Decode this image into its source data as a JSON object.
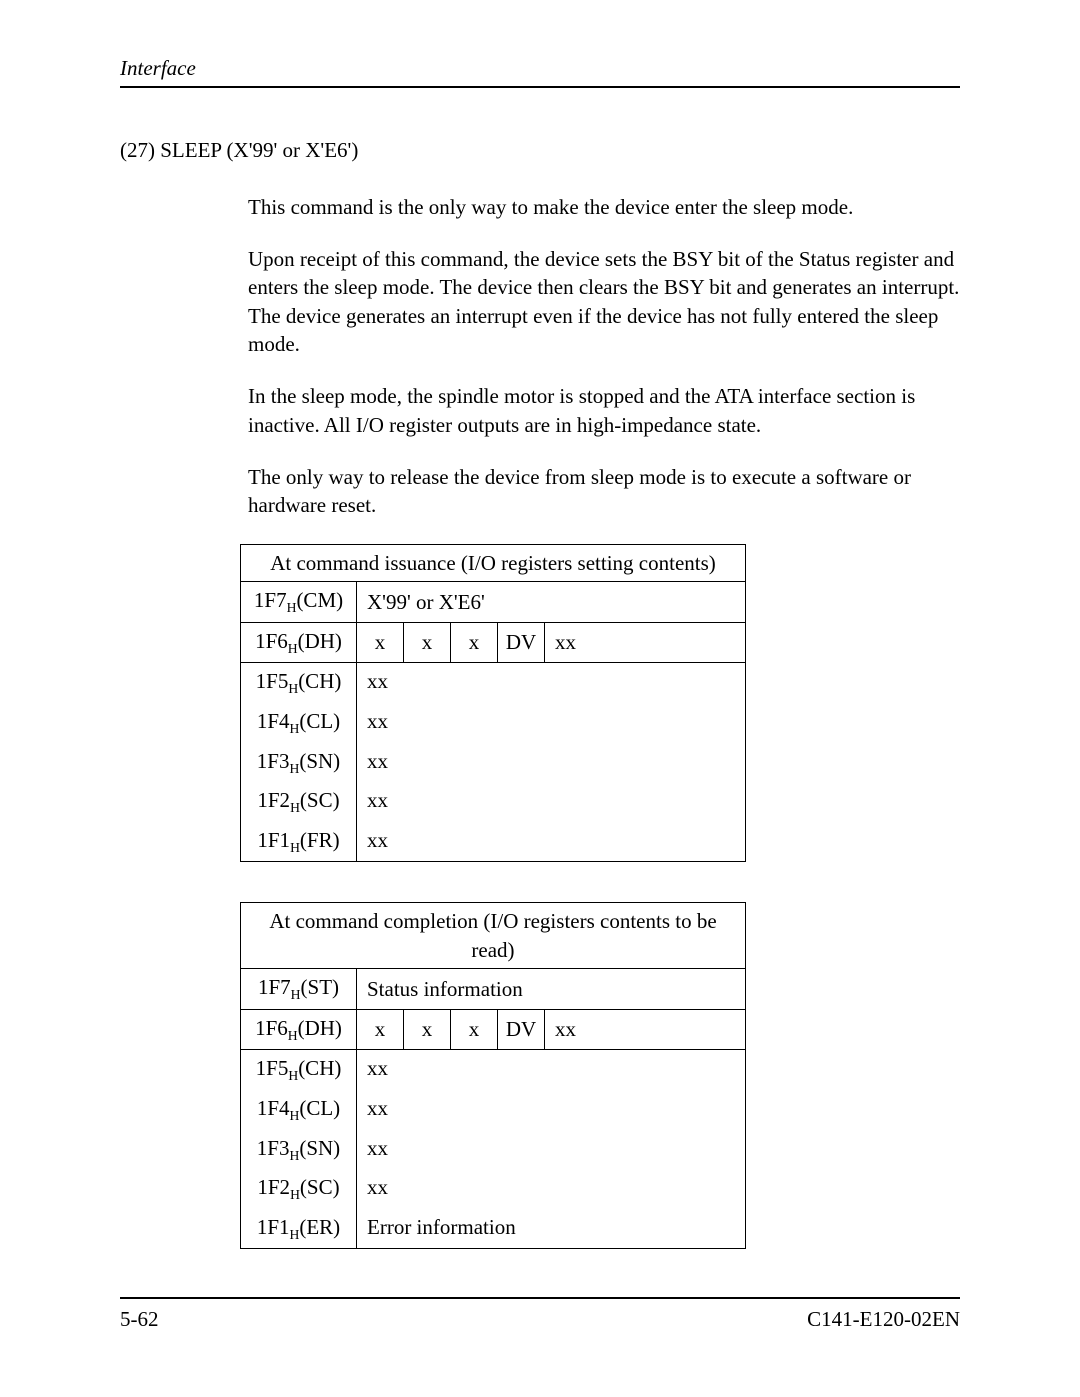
{
  "header": {
    "chapter_label": "Interface"
  },
  "section": {
    "heading": "(27)  SLEEP (X'99' or X'E6')",
    "paragraphs": [
      "This command is the only way to make the device enter the sleep mode.",
      "Upon receipt of this command, the device sets the BSY bit of the Status register and enters the sleep mode.  The device then clears the BSY bit and generates an interrupt. The device generates an interrupt even if the device has not fully entered the sleep mode.",
      "In the sleep mode, the spindle motor is stopped and the ATA interface section is inactive.  All I/O register outputs are in high-impedance state.",
      "The only way to release the device from sleep mode is to execute a software or hardware reset."
    ]
  },
  "table_issuance": {
    "caption": "At command issuance (I/O registers setting contents)",
    "row_cm": {
      "label": "1F7",
      "sub": "H",
      "paren": "(CM)",
      "value": "X'99' or X'E6'"
    },
    "row_dh": {
      "label": "1F6",
      "sub": "H",
      "paren": "(DH)",
      "b0": "x",
      "b1": "x",
      "b2": "x",
      "b3": "DV",
      "rest": "xx"
    },
    "stack": [
      {
        "label": "1F5",
        "sub": "H",
        "paren": "(CH)",
        "value": "xx"
      },
      {
        "label": "1F4",
        "sub": "H",
        "paren": "(CL)",
        "value": "xx"
      },
      {
        "label": "1F3",
        "sub": "H",
        "paren": "(SN)",
        "value": "xx"
      },
      {
        "label": "1F2",
        "sub": "H",
        "paren": "(SC)",
        "value": "xx"
      },
      {
        "label": "1F1",
        "sub": "H",
        "paren": "(FR)",
        "value": "xx"
      }
    ]
  },
  "table_completion": {
    "caption": "At command completion (I/O registers contents to be read)",
    "row_st": {
      "label": "1F7",
      "sub": "H",
      "paren": "(ST)",
      "value": "Status information"
    },
    "row_dh": {
      "label": "1F6",
      "sub": "H",
      "paren": "(DH)",
      "b0": "x",
      "b1": "x",
      "b2": "x",
      "b3": "DV",
      "rest": "xx"
    },
    "stack": [
      {
        "label": "1F5",
        "sub": "H",
        "paren": "(CH)",
        "value": "xx"
      },
      {
        "label": "1F4",
        "sub": "H",
        "paren": "(CL)",
        "value": "xx"
      },
      {
        "label": "1F3",
        "sub": "H",
        "paren": "(SN)",
        "value": "xx"
      },
      {
        "label": "1F2",
        "sub": "H",
        "paren": "(SC)",
        "value": "xx"
      },
      {
        "label": "1F1",
        "sub": "H",
        "paren": "(ER)",
        "value": "Error information"
      }
    ]
  },
  "footer": {
    "page_number": "5-62",
    "doc_id": "C141-E120-02EN"
  }
}
